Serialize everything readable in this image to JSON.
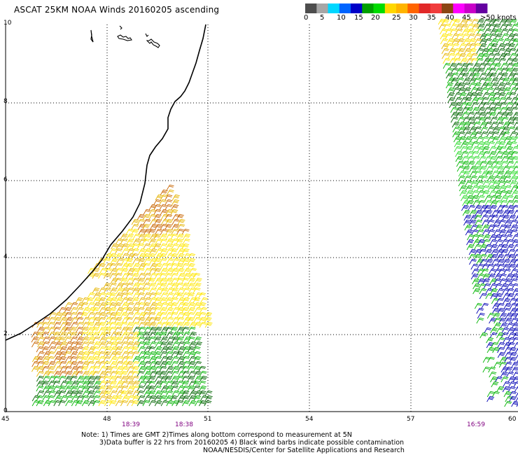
{
  "title": "ASCAT 25KM NOAA Winds 20160205 ascending",
  "legend": {
    "colors": [
      "#4d4d4d",
      "#a6a6a6",
      "#00d7ff",
      "#0064ff",
      "#0000c8",
      "#00a000",
      "#00dc00",
      "#ffd700",
      "#ffb400",
      "#ff6400",
      "#e12828",
      "#f03c3c",
      "#8b4513",
      "#ff00ff",
      "#c800c8",
      "#6400a0"
    ],
    "labels": [
      "0",
      "5",
      "10",
      "15",
      "20",
      "25",
      "30",
      "35",
      "40",
      "45",
      ">50 knots"
    ]
  },
  "axes": {
    "x_ticks": [
      "45",
      "48",
      "51",
      "54",
      "57",
      "60"
    ],
    "y_ticks": [
      "0",
      "2",
      "4",
      "6",
      "8",
      "10"
    ]
  },
  "times": [
    "18:39",
    "18:38",
    "16:59"
  ],
  "notes": {
    "line1": "Note: 1) Times are GMT 2)Times along bottom correspond to measurement at 5N",
    "line2": "3)Data buffer is 22 hrs from 20160205 4) Black wind barbs indicate possible contamination",
    "line3": "NOAA/NESDIS/Center for Satellite Applications and Research"
  },
  "palette": {
    "orange": "#c86400",
    "gold": "#e6b400",
    "yellow": "#ffe600",
    "green_dark": "#006400",
    "green": "#00b400",
    "green_light": "#32dc32",
    "blue": "#0000b4",
    "time_color": "#800080"
  }
}
